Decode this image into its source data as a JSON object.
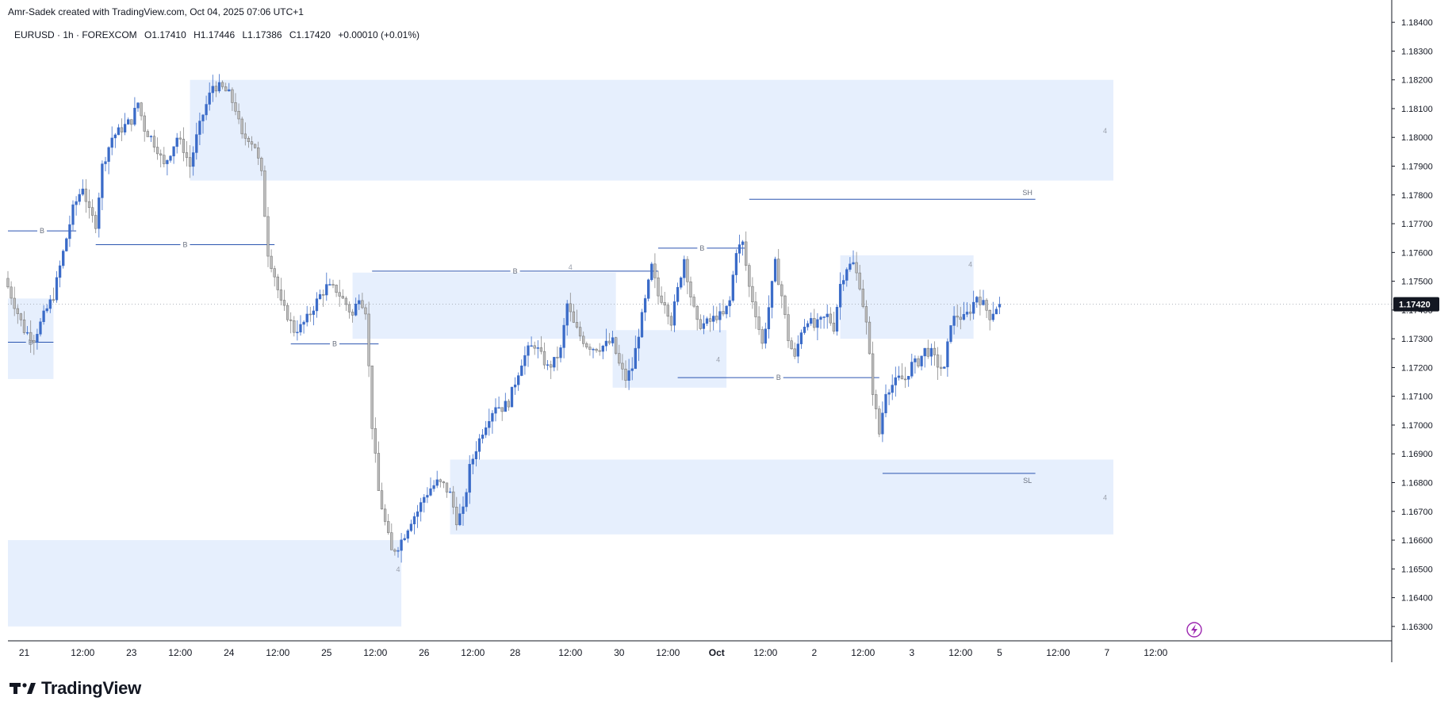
{
  "header": {
    "attribution": "Amr-Sadek created with TradingView.com, Oct 04, 2025 07:06 UTC+1"
  },
  "legend": {
    "symbol": "EURUSD · 1h · FOREXCOM",
    "open": "O1.17410",
    "high": "H1.17446",
    "low": "L1.17386",
    "close": "C1.17420",
    "change": "+0.00010 (+0.01%)"
  },
  "footer": {
    "brand": "TradingView"
  },
  "colors": {
    "up": "#3a6bc8",
    "down": "#bdbdbd",
    "zone": "#e6effd",
    "line": "#2b55b0",
    "text": "#131722"
  },
  "chart_data": {
    "type": "candlestick",
    "symbol": "EURUSD",
    "timeframe": "1h",
    "ylim": [
      1.1625,
      1.1845
    ],
    "y_ticks": [
      "1.18400",
      "1.18300",
      "1.18200",
      "1.18100",
      "1.18000",
      "1.17900",
      "1.17800",
      "1.17700",
      "1.17600",
      "1.17500",
      "1.17400",
      "1.17300",
      "1.17200",
      "1.17100",
      "1.17000",
      "1.16900",
      "1.16800",
      "1.16700",
      "1.16600",
      "1.16500",
      "1.16400",
      "1.16300"
    ],
    "x_ticks": [
      {
        "label": "21",
        "idx": 5
      },
      {
        "label": "12:00",
        "idx": 23
      },
      {
        "label": "23",
        "idx": 38
      },
      {
        "label": "12:00",
        "idx": 53
      },
      {
        "label": "24",
        "idx": 68
      },
      {
        "label": "12:00",
        "idx": 83
      },
      {
        "label": "25",
        "idx": 98
      },
      {
        "label": "12:00",
        "idx": 113
      },
      {
        "label": "26",
        "idx": 128
      },
      {
        "label": "12:00",
        "idx": 143
      },
      {
        "label": "28",
        "idx": 156
      },
      {
        "label": "12:00",
        "idx": 173
      },
      {
        "label": "30",
        "idx": 188
      },
      {
        "label": "12:00",
        "idx": 203
      },
      {
        "label": "Oct",
        "idx": 218,
        "bold": true
      },
      {
        "label": "12:00",
        "idx": 233
      },
      {
        "label": "2",
        "idx": 248
      },
      {
        "label": "12:00",
        "idx": 263
      },
      {
        "label": "3",
        "idx": 278
      },
      {
        "label": "12:00",
        "idx": 293
      },
      {
        "label": "5",
        "idx": 305
      },
      {
        "label": "12:00",
        "idx": 323
      },
      {
        "label": "7",
        "idx": 338
      },
      {
        "label": "12:00",
        "idx": 353
      }
    ],
    "last_price": "1.17420",
    "ohlc": [],
    "zones": [
      {
        "x1": 0,
        "x2": 14,
        "y1": 1.1716,
        "y2": 1.1744
      },
      {
        "x1": 0,
        "x2": 121,
        "y1": 1.163,
        "y2": 1.166
      },
      {
        "x1": 56,
        "x2": 340,
        "y1": 1.1785,
        "y2": 1.182,
        "label": "4"
      },
      {
        "x1": 106,
        "x2": 187,
        "y1": 1.173,
        "y2": 1.1753
      },
      {
        "x1": 136,
        "x2": 340,
        "y1": 1.1662,
        "y2": 1.1688,
        "label": "4"
      },
      {
        "x1": 186,
        "x2": 221,
        "y1": 1.1713,
        "y2": 1.1733,
        "label": "4"
      },
      {
        "x1": 256,
        "x2": 297,
        "y1": 1.173,
        "y2": 1.1759
      }
    ],
    "levels": [
      {
        "x1": 0,
        "x2": 21,
        "y": 1.17675,
        "label": "B"
      },
      {
        "x1": 27,
        "x2": 82,
        "y": 1.17627,
        "label": "B"
      },
      {
        "x1": 112,
        "x2": 200,
        "y": 1.17535,
        "label": "B"
      },
      {
        "x1": 200,
        "x2": 227,
        "y": 1.17615,
        "label": "B"
      },
      {
        "x1": 0,
        "x2": 14,
        "y": 1.17288,
        "label": "B"
      },
      {
        "x1": 87,
        "x2": 114,
        "y": 1.17282,
        "label": "B"
      },
      {
        "x1": 206,
        "x2": 268,
        "y": 1.17165,
        "label": "B"
      },
      {
        "x1": 228,
        "x2": 316,
        "y": 1.17785,
        "label": "SH"
      },
      {
        "x1": 269,
        "x2": 316,
        "y": 1.16832,
        "label": "SL"
      }
    ],
    "annotations": [
      {
        "idx": 120,
        "price": 1.1649,
        "text": "4"
      },
      {
        "idx": 173,
        "price": 1.1754,
        "text": "4"
      },
      {
        "idx": 296,
        "price": 1.1755,
        "text": "4"
      }
    ]
  }
}
